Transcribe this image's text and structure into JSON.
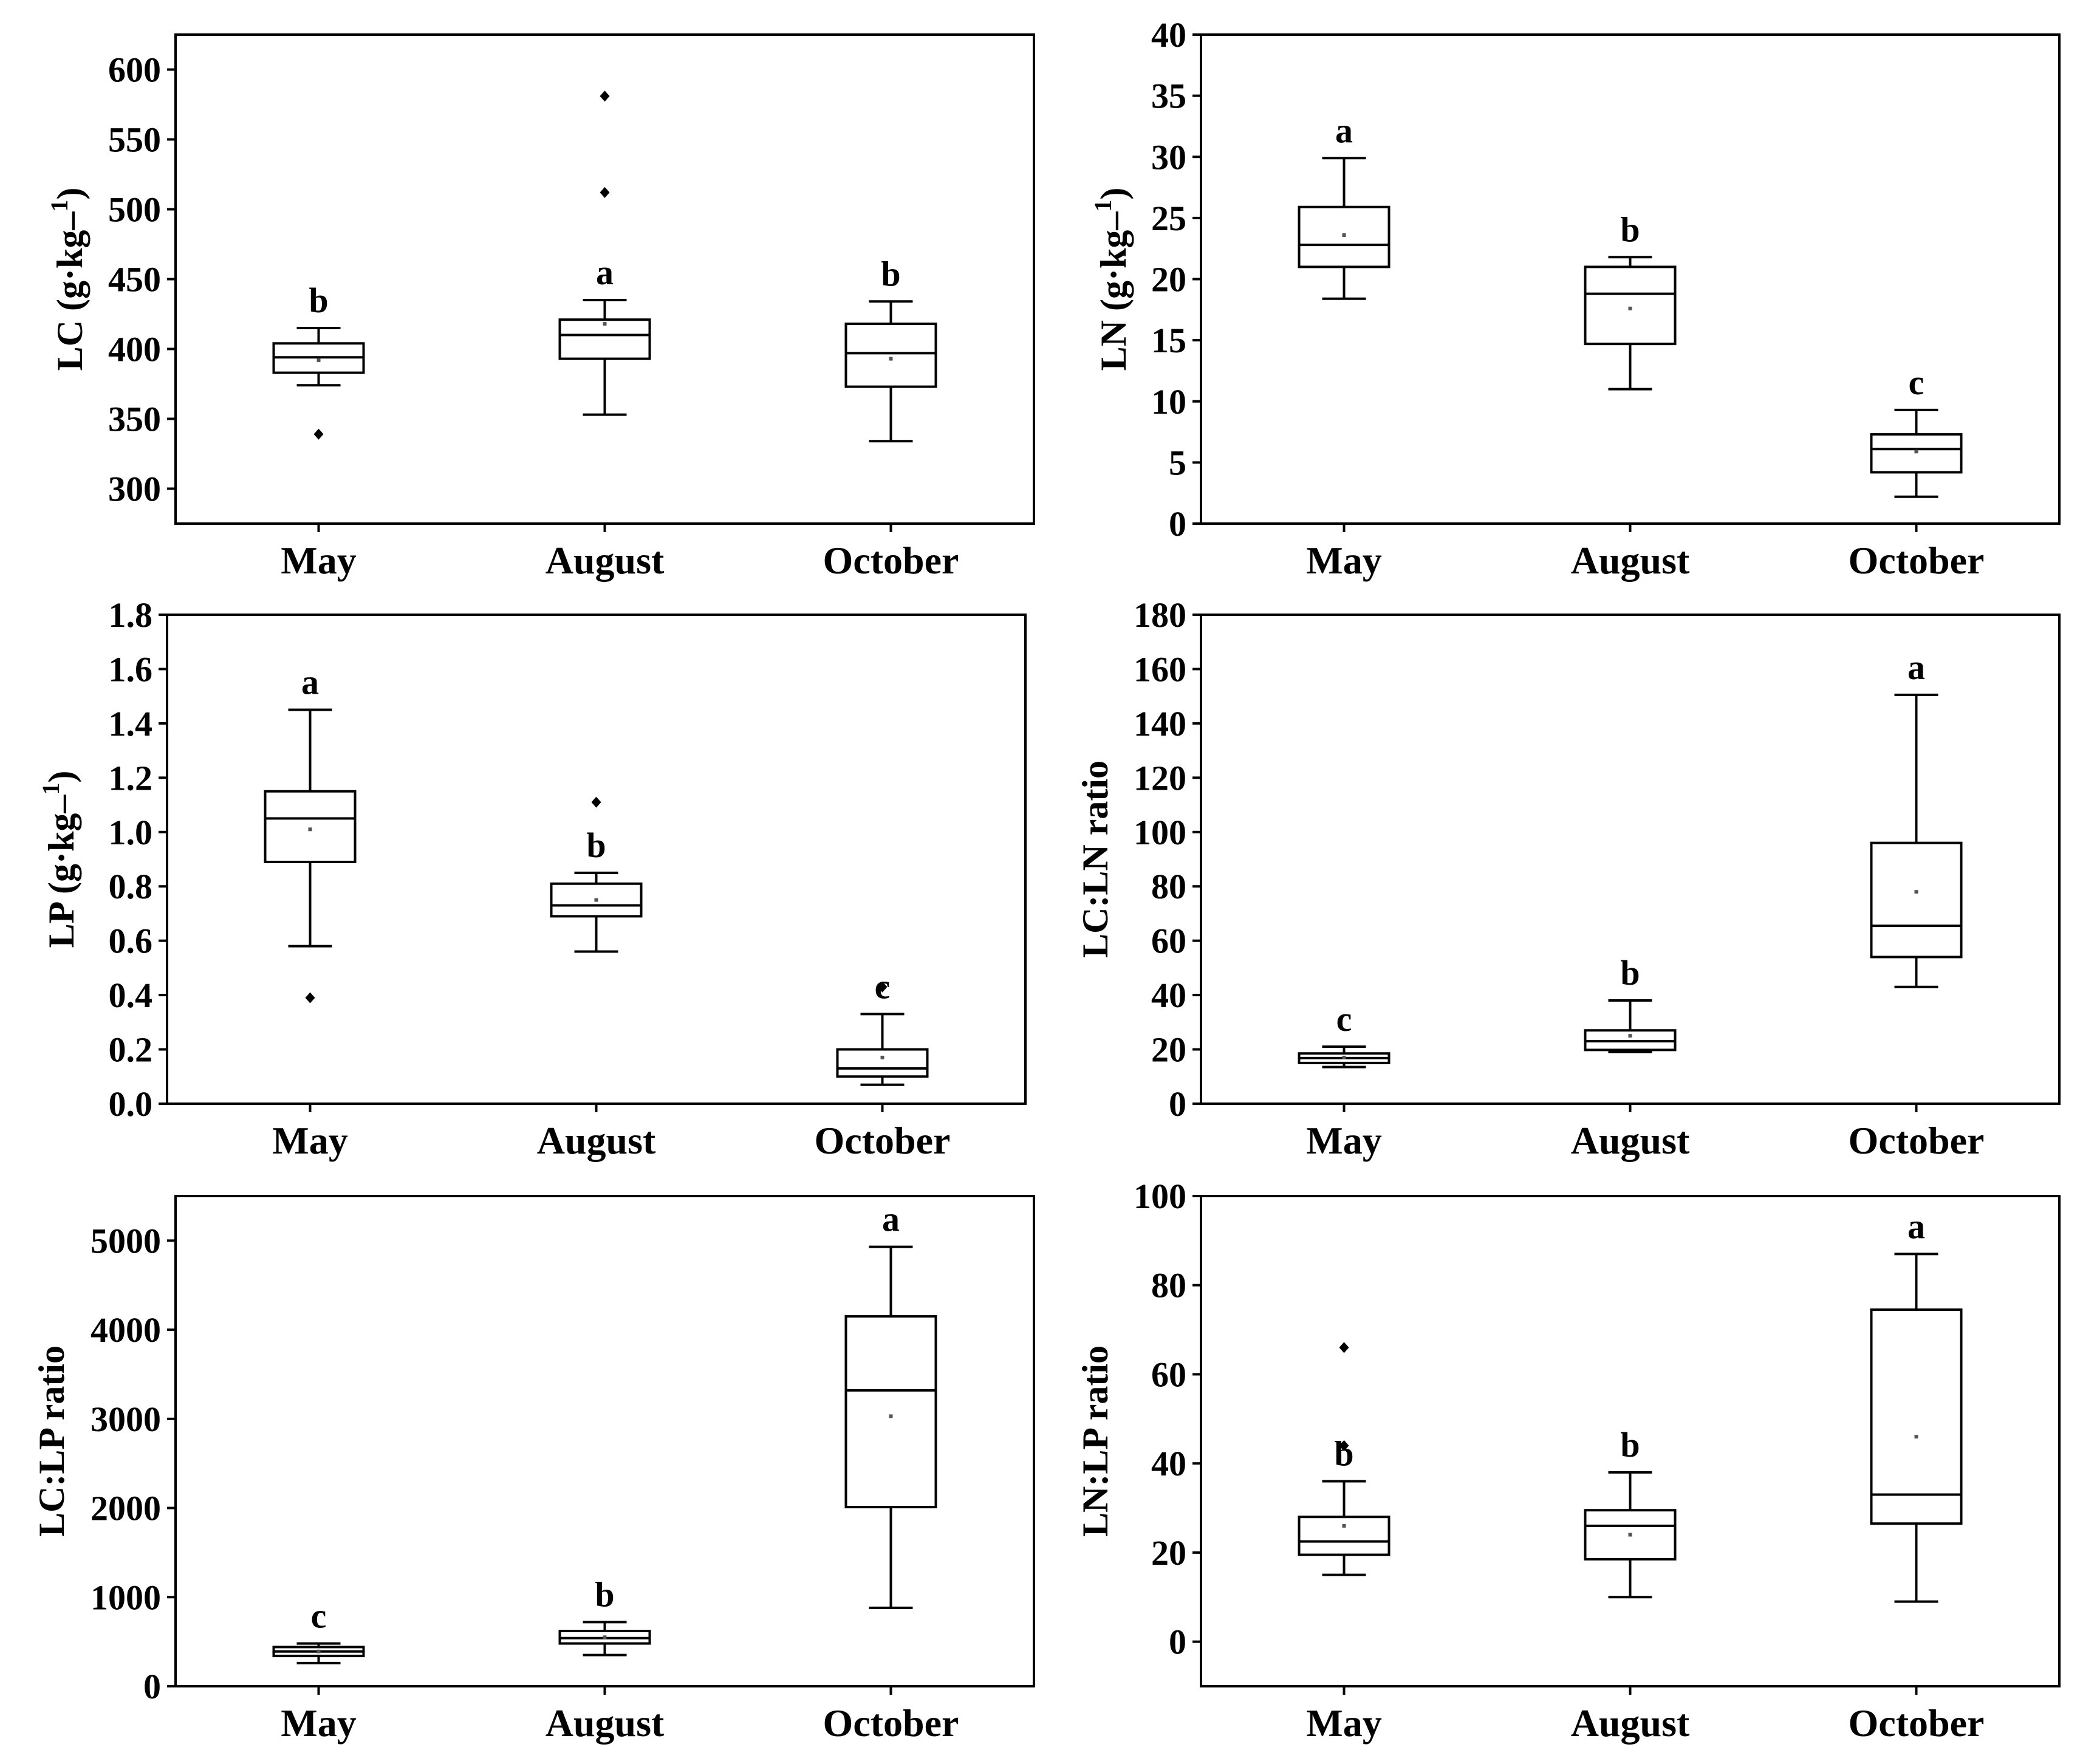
{
  "chart_data": [
    {
      "type": "box",
      "id": "lc",
      "ylabel": "LC (g·kg⁻¹)",
      "categories": [
        "May",
        "August",
        "October"
      ],
      "ylim": [
        275,
        625
      ],
      "yticks": [
        300,
        350,
        400,
        450,
        500,
        550,
        600
      ],
      "yticklabels": [
        "300",
        "350",
        "400",
        "450",
        "500",
        "550",
        "600"
      ],
      "boxes": [
        {
          "name": "May",
          "whisker_low": 374,
          "q1": 383,
          "median": 394,
          "q3": 404,
          "whisker_high": 415,
          "mean": 392,
          "outliers": [
            339
          ],
          "letter": "b"
        },
        {
          "name": "August",
          "whisker_low": 353,
          "q1": 393,
          "median": 410,
          "q3": 421,
          "whisker_high": 435,
          "mean": 418,
          "outliers": [
            512,
            581
          ],
          "letter": "a"
        },
        {
          "name": "October",
          "whisker_low": 334,
          "q1": 373,
          "median": 397,
          "q3": 418,
          "whisker_high": 434,
          "mean": 393,
          "outliers": [],
          "letter": "b"
        }
      ]
    },
    {
      "type": "box",
      "id": "ln",
      "ylabel": "LN (g·kg⁻¹)",
      "categories": [
        "May",
        "August",
        "October"
      ],
      "ylim": [
        0,
        40
      ],
      "yticks": [
        0,
        5,
        10,
        15,
        20,
        25,
        30,
        35,
        40
      ],
      "yticklabels": [
        "0",
        "5",
        "10",
        "15",
        "20",
        "25",
        "30",
        "35",
        "40"
      ],
      "boxes": [
        {
          "name": "May",
          "whisker_low": 18.4,
          "q1": 21.0,
          "median": 22.8,
          "q3": 25.9,
          "whisker_high": 29.9,
          "mean": 23.6,
          "outliers": [],
          "letter": "a"
        },
        {
          "name": "August",
          "whisker_low": 11.0,
          "q1": 14.7,
          "median": 18.8,
          "q3": 21.0,
          "whisker_high": 21.8,
          "mean": 17.6,
          "outliers": [],
          "letter": "b"
        },
        {
          "name": "October",
          "whisker_low": 2.2,
          "q1": 4.2,
          "median": 6.1,
          "q3": 7.3,
          "whisker_high": 9.3,
          "mean": 5.9,
          "outliers": [],
          "letter": "c"
        }
      ]
    },
    {
      "type": "box",
      "id": "lp",
      "ylabel": "LP (g·kg⁻¹)",
      "categories": [
        "May",
        "August",
        "October"
      ],
      "ylim": [
        0,
        1.8
      ],
      "yticks": [
        0,
        0.2,
        0.4,
        0.6,
        0.8,
        1.0,
        1.2,
        1.4,
        1.6,
        1.8
      ],
      "yticklabels": [
        "0.0",
        "0.2",
        "0.4",
        "0.6",
        "0.8",
        "1.0",
        "1.2",
        "1.4",
        "1.6",
        "1.8"
      ],
      "boxes": [
        {
          "name": "May",
          "whisker_low": 0.58,
          "q1": 0.89,
          "median": 1.05,
          "q3": 1.15,
          "whisker_high": 1.45,
          "mean": 1.01,
          "outliers": [
            0.39
          ],
          "letter": "a"
        },
        {
          "name": "August",
          "whisker_low": 0.56,
          "q1": 0.69,
          "median": 0.73,
          "q3": 0.81,
          "whisker_high": 0.85,
          "mean": 0.75,
          "outliers": [
            1.11
          ],
          "letter": "b"
        },
        {
          "name": "October",
          "whisker_low": 0.07,
          "q1": 0.1,
          "median": 0.13,
          "q3": 0.2,
          "whisker_high": 0.33,
          "mean": 0.17,
          "outliers": [
            0.43
          ],
          "letter": "c"
        }
      ]
    },
    {
      "type": "box",
      "id": "lcln",
      "ylabel": "LC:LN ratio",
      "categories": [
        "May",
        "August",
        "October"
      ],
      "ylim": [
        0,
        180
      ],
      "yticks": [
        0,
        20,
        40,
        60,
        80,
        100,
        120,
        140,
        160,
        180
      ],
      "yticklabels": [
        "0",
        "20",
        "40",
        "60",
        "80",
        "100",
        "120",
        "140",
        "160",
        "180"
      ],
      "boxes": [
        {
          "name": "May",
          "whisker_low": 13.5,
          "q1": 15.0,
          "median": 16.8,
          "q3": 18.5,
          "whisker_high": 21.0,
          "mean": 17.0,
          "outliers": [],
          "letter": "c"
        },
        {
          "name": "August",
          "whisker_low": 19.0,
          "q1": 19.8,
          "median": 23.0,
          "q3": 27.0,
          "whisker_high": 38.0,
          "mean": 25.0,
          "outliers": [],
          "letter": "b"
        },
        {
          "name": "October",
          "whisker_low": 43.0,
          "q1": 54.0,
          "median": 65.5,
          "q3": 96.0,
          "whisker_high": 150.5,
          "mean": 78.0,
          "outliers": [],
          "letter": "a"
        }
      ]
    },
    {
      "type": "box",
      "id": "lclp",
      "ylabel": "LC:LP ratio",
      "categories": [
        "May",
        "August",
        "October"
      ],
      "ylim": [
        0,
        5500
      ],
      "yticks": [
        0,
        1000,
        2000,
        3000,
        4000,
        5000
      ],
      "yticklabels": [
        "0",
        "1000",
        "2000",
        "3000",
        "4000",
        "5000"
      ],
      "boxes": [
        {
          "name": "May",
          "whisker_low": 260,
          "q1": 340,
          "median": 390,
          "q3": 440,
          "whisker_high": 480,
          "mean": 390,
          "outliers": [],
          "letter": "c"
        },
        {
          "name": "August",
          "whisker_low": 350,
          "q1": 480,
          "median": 540,
          "q3": 620,
          "whisker_high": 720,
          "mean": 550,
          "outliers": [],
          "letter": "b"
        },
        {
          "name": "October",
          "whisker_low": 880,
          "q1": 2010,
          "median": 3320,
          "q3": 4150,
          "whisker_high": 4930,
          "mean": 3030,
          "outliers": [],
          "letter": "a"
        }
      ]
    },
    {
      "type": "box",
      "id": "lnlp",
      "ylabel": "LN:LP ratio",
      "categories": [
        "May",
        "August",
        "October"
      ],
      "ylim": [
        -10,
        100
      ],
      "yticks": [
        0,
        20,
        40,
        60,
        80,
        100
      ],
      "yticklabels": [
        "0",
        "20",
        "40",
        "60",
        "80",
        "100"
      ],
      "boxes": [
        {
          "name": "May",
          "whisker_low": 15.0,
          "q1": 19.5,
          "median": 22.5,
          "q3": 28.0,
          "whisker_high": 36.0,
          "mean": 26.0,
          "outliers": [
            44.0,
            66.0
          ],
          "letter": "b"
        },
        {
          "name": "August",
          "whisker_low": 10.0,
          "q1": 18.5,
          "median": 26.0,
          "q3": 29.5,
          "whisker_high": 38.0,
          "mean": 24.0,
          "outliers": [],
          "letter": "b"
        },
        {
          "name": "October",
          "whisker_low": 9.0,
          "q1": 26.5,
          "median": 33.0,
          "q3": 74.5,
          "whisker_high": 87.0,
          "mean": 46.0,
          "outliers": [],
          "letter": "a"
        }
      ]
    }
  ]
}
